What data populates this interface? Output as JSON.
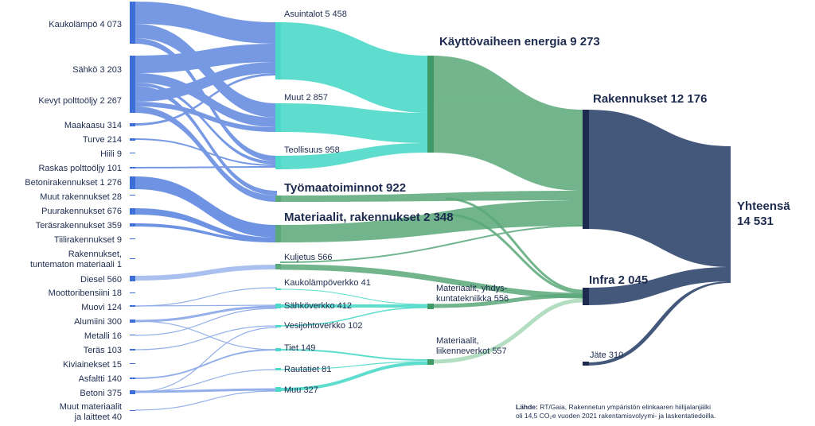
{
  "sources": [
    {
      "label": "Kaukolämpö 4 073"
    },
    {
      "label": "Sähkö 3 203"
    },
    {
      "label": "Kevyt polttoöljy 2 267"
    },
    {
      "label": "Maakaasu 314"
    },
    {
      "label": "Turve 214"
    },
    {
      "label": "Hiili 9"
    },
    {
      "label": "Raskas polttoöljy 101"
    },
    {
      "label": "Betonirakennukset 1 276"
    },
    {
      "label": "Muut rakennukset 28"
    },
    {
      "label": "Puurakennukset 676"
    },
    {
      "label": "Teräsrakennukset 359"
    },
    {
      "label": "Tiilirakennukset 9"
    },
    {
      "label_line1": "Rakennukset,",
      "label_line2": "tuntematon materiaali 1"
    },
    {
      "label": "Diesel 560"
    },
    {
      "label": "Moottoribensiini 18"
    },
    {
      "label": "Muovi 124"
    },
    {
      "label": "Alumiini 300"
    },
    {
      "label": "Metalli 16"
    },
    {
      "label": "Teräs 103"
    },
    {
      "label": "Kiviainekset 15"
    },
    {
      "label": "Asfaltti 140"
    },
    {
      "label": "Betoni 375"
    },
    {
      "label_line1": "Muut materiaalit",
      "label_line2": "ja laitteet 40"
    }
  ],
  "middle": {
    "asuintalot": "Asuintalot 5 458",
    "muut": "Muut 2 857",
    "teollisuus": "Teollisuus 958",
    "tyomaa": "Työmaatoiminnot 922",
    "materiaalit_rak": "Materiaalit, rakennukset 2 348",
    "kuljetus": "Kuljetus 566",
    "kaukolampoverkko": "Kaukolämpöverkko 41",
    "sahkoverkko": "Sähköverkko 412",
    "vesijohtoverkko": "Vesijohtoverkko 102",
    "tiet": "Tiet 149",
    "rautatiet": "Rautatiet 81",
    "muu": "Muu 327"
  },
  "third": {
    "kayttovaihe": "Käyttövaiheen energia 9 273",
    "mat_yhdys_line1": "Materiaalit, yhdys-",
    "mat_yhdys_line2": "kuntatekniikka 556",
    "mat_liikenne_line1": "Materiaalit,",
    "mat_liikenne_line2": "liikenneverkot 557"
  },
  "fourth": {
    "rakennukset": "Rakennukset 12 176",
    "infra": "Infra 2 045",
    "jate": "Jäte 310"
  },
  "total": {
    "line1": "Yhteensä",
    "line2": "14 531"
  },
  "note": {
    "bold": "Lähde:",
    "line1": " RT/Gaia, Rakennetun ympäristön elinkaaren hiilijalanjälki",
    "line2": "oli 14,5 CO₂e vuoden 2021 rakentamisvolyymi- ja laskentatiedoilla."
  },
  "colors": {
    "blue": "#3e6fd9",
    "teal": "#4dd9c9",
    "green": "#5aa97a",
    "navy": "#43587a",
    "dark_navy": "#1d2b4f"
  }
}
